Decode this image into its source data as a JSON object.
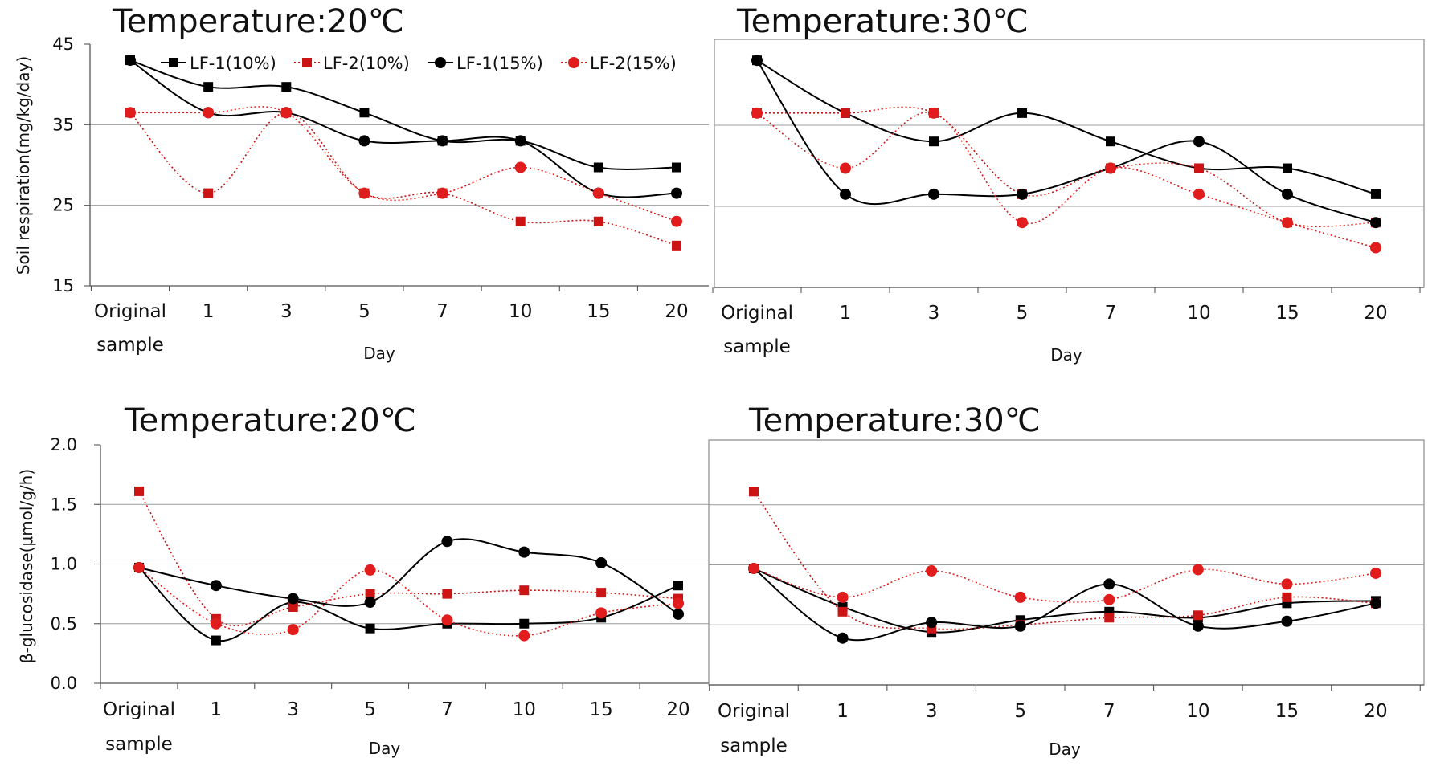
{
  "chart_data": [
    {
      "type": "line",
      "title": "Temperature:20℃",
      "xlabel": "Day",
      "ylabel": "Soil respiration(mg/kg/day)",
      "categories": [
        "Original sample",
        "1",
        "3",
        "5",
        "7",
        "10",
        "15",
        "20"
      ],
      "ylim": [
        15,
        45
      ],
      "yticks": [
        "15",
        "25",
        "35",
        "45"
      ],
      "grid": true,
      "legend": "top",
      "series": [
        {
          "name": "LF-1(10%)",
          "values": [
            43,
            39.7,
            39.7,
            36.5,
            33,
            33,
            29.7,
            29.7
          ]
        },
        {
          "name": "LF-2(10%)",
          "values": [
            36.5,
            26.5,
            36.5,
            26.5,
            26.5,
            23,
            23,
            20
          ]
        },
        {
          "name": "LF-1(15%)",
          "values": [
            43,
            36.5,
            36.5,
            33,
            33,
            33,
            26.5,
            26.5
          ]
        },
        {
          "name": "LF-2(15%)",
          "values": [
            36.5,
            36.5,
            36.5,
            26.5,
            26.5,
            29.7,
            26.5,
            23
          ]
        }
      ]
    },
    {
      "type": "line",
      "title": "Temperature:30℃",
      "xlabel": "Day",
      "ylabel": "",
      "categories": [
        "Original sample",
        "1",
        "3",
        "5",
        "7",
        "10",
        "15",
        "20"
      ],
      "ylim": [
        15,
        45
      ],
      "yticks": [],
      "grid": true,
      "legend": "none",
      "series": [
        {
          "name": "LF-1(10%)",
          "values": [
            43,
            36.5,
            33,
            36.5,
            33,
            29.7,
            29.7,
            26.5
          ]
        },
        {
          "name": "LF-2(10%)",
          "values": [
            36.5,
            36.5,
            36.5,
            26.5,
            29.7,
            29.7,
            23,
            23
          ]
        },
        {
          "name": "LF-1(15%)",
          "values": [
            43,
            26.5,
            26.5,
            26.5,
            29.7,
            33,
            26.5,
            23
          ]
        },
        {
          "name": "LF-2(15%)",
          "values": [
            36.5,
            29.7,
            36.5,
            23,
            29.7,
            26.5,
            23,
            19.9
          ]
        }
      ]
    },
    {
      "type": "line",
      "title": "Temperature:20℃",
      "xlabel": "Day",
      "ylabel": "β-glucosidase(μmol/g/h)",
      "categories": [
        "Original sample",
        "1",
        "3",
        "5",
        "7",
        "10",
        "15",
        "20"
      ],
      "ylim": [
        0,
        2
      ],
      "yticks": [
        "0.0",
        "0.5",
        "1.0",
        "1.5",
        "2.0"
      ],
      "grid": true,
      "legend": "none",
      "series": [
        {
          "name": "LF-1(10%)",
          "values": [
            0.97,
            0.36,
            0.68,
            0.46,
            0.5,
            0.5,
            0.55,
            0.82
          ]
        },
        {
          "name": "LF-2(10%)",
          "values": [
            1.61,
            0.54,
            0.64,
            0.75,
            0.75,
            0.78,
            0.76,
            0.71
          ]
        },
        {
          "name": "LF-1(15%)",
          "values": [
            0.97,
            0.82,
            0.71,
            0.68,
            1.19,
            1.1,
            1.01,
            0.58
          ]
        },
        {
          "name": "LF-2(15%)",
          "values": [
            0.97,
            0.5,
            0.45,
            0.95,
            0.53,
            0.4,
            0.59,
            0.67
          ]
        }
      ]
    },
    {
      "type": "line",
      "title": "Temperature:30℃",
      "xlabel": "Day",
      "ylabel": "",
      "categories": [
        "Original sample",
        "1",
        "3",
        "5",
        "7",
        "10",
        "15",
        "20"
      ],
      "ylim": [
        0,
        2
      ],
      "yticks": [],
      "grid": true,
      "legend": "none",
      "series": [
        {
          "name": "LF-1(10%)",
          "values": [
            0.97,
            0.65,
            0.44,
            0.54,
            0.61,
            0.56,
            0.68,
            0.7
          ]
        },
        {
          "name": "LF-2(10%)",
          "values": [
            1.61,
            0.61,
            0.47,
            0.5,
            0.56,
            0.58,
            0.73,
            0.68
          ]
        },
        {
          "name": "LF-1(15%)",
          "values": [
            0.97,
            0.39,
            0.52,
            0.49,
            0.84,
            0.49,
            0.53,
            0.68
          ]
        },
        {
          "name": "LF-2(15%)",
          "values": [
            0.97,
            0.73,
            0.95,
            0.73,
            0.71,
            0.96,
            0.84,
            0.93
          ]
        }
      ]
    }
  ],
  "series_style": {
    "LF-1(10%)": {
      "color": "#000000",
      "marker": "square",
      "dash": "solid"
    },
    "LF-2(10%)": {
      "color": "#cc1414",
      "marker": "square",
      "dash": "dotted"
    },
    "LF-1(15%)": {
      "color": "#000000",
      "marker": "circle",
      "dash": "solid"
    },
    "LF-2(15%)": {
      "color": "#e01c1c",
      "marker": "circle",
      "dash": "dotted"
    }
  }
}
